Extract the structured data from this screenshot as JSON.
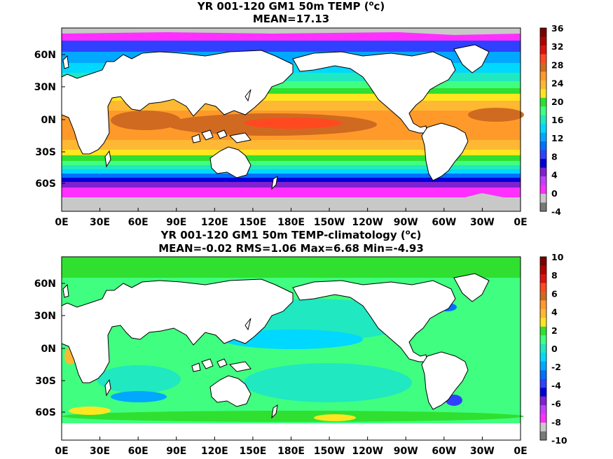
{
  "panels": [
    {
      "title_line1": "YR 001-120 GM1 50m TEMP (",
      "title_unit_sup": "o",
      "title_unit_rest": "c)",
      "title_line2": "MEAN=17.13",
      "lat_labels": [
        "60N",
        "30N",
        "0N",
        "30S",
        "60S"
      ],
      "lon_labels": [
        "0E",
        "30E",
        "60E",
        "90E",
        "120E",
        "150E",
        "180E",
        "150W",
        "120W",
        "90W",
        "60W",
        "30W",
        "0E"
      ],
      "colorbar": {
        "labels": [
          "36",
          "32",
          "28",
          "24",
          "20",
          "16",
          "12",
          "8",
          "4",
          "0",
          "-4"
        ],
        "colors": [
          "#7a0000",
          "#b00000",
          "#e01010",
          "#ff4a20",
          "#d06a20",
          "#ff9a2a",
          "#ffb833",
          "#ffe620",
          "#30e030",
          "#40ff80",
          "#20e8c0",
          "#00d8ff",
          "#00a8ff",
          "#0070ff",
          "#3040ff",
          "#0000d8",
          "#8020d0",
          "#c040ff",
          "#ff30ff",
          "#c8c8c8",
          "#787878"
        ]
      }
    },
    {
      "title_line1": "YR 001-120 GM1 50m TEMP-climatology (",
      "title_unit_sup": "o",
      "title_unit_rest": "c)",
      "title_line2": "MEAN=-0.02   RMS=1.06   Max=6.68   Min=-4.93",
      "lat_labels": [
        "60N",
        "30N",
        "0N",
        "30S",
        "60S"
      ],
      "lon_labels": [
        "0E",
        "30E",
        "60E",
        "90E",
        "120E",
        "150E",
        "180E",
        "150W",
        "120W",
        "90W",
        "60W",
        "30W",
        "0E"
      ],
      "colorbar": {
        "labels": [
          "10",
          "8",
          "6",
          "4",
          "2",
          "0",
          "-2",
          "-4",
          "-6",
          "-8",
          "-10"
        ],
        "colors": [
          "#7a0000",
          "#b00000",
          "#e01010",
          "#ff4a20",
          "#d06a20",
          "#ff9a2a",
          "#ffb833",
          "#ffe620",
          "#30e030",
          "#40ff80",
          "#20e8c0",
          "#00d8ff",
          "#00a8ff",
          "#0070ff",
          "#3040ff",
          "#0000d8",
          "#8020d0",
          "#c040ff",
          "#ff30ff",
          "#c8c8c8",
          "#787878"
        ]
      }
    }
  ],
  "colors": {
    "land": "#ffffff",
    "sea_ice": "#c8c8c8",
    "coast": "#000000"
  }
}
